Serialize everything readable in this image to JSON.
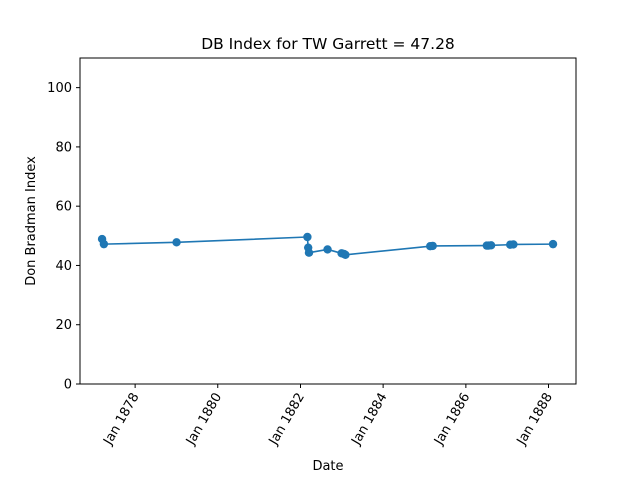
{
  "chart_data": {
    "type": "line",
    "title": "DB Index for TW Garrett = 47.28",
    "xlabel": "Date",
    "ylabel": "Don Bradman Index",
    "ylim": [
      0,
      110
    ],
    "xlim": [
      "1876-09-01",
      "1888-08-31"
    ],
    "yticks": [
      0,
      20,
      40,
      60,
      80,
      100
    ],
    "xticks": [
      {
        "date": "1878-01-01",
        "label": "Jan 1878"
      },
      {
        "date": "1880-01-01",
        "label": "Jan 1880"
      },
      {
        "date": "1882-01-01",
        "label": "Jan 1882"
      },
      {
        "date": "1884-01-01",
        "label": "Jan 1884"
      },
      {
        "date": "1886-01-01",
        "label": "Jan 1886"
      },
      {
        "date": "1888-01-01",
        "label": "Jan 1888"
      }
    ],
    "grid": false,
    "series": [
      {
        "color": "#1f77b4",
        "marker": "circle",
        "points": [
          {
            "x": "1877-03-15",
            "y": 48.9
          },
          {
            "x": "1877-03-31",
            "y": 47.2
          },
          {
            "x": "1879-01-02",
            "y": 47.8
          },
          {
            "x": "1882-03-03",
            "y": 49.6
          },
          {
            "x": "1882-03-10",
            "y": 46.0
          },
          {
            "x": "1882-03-17",
            "y": 44.3
          },
          {
            "x": "1882-08-28",
            "y": 45.4
          },
          {
            "x": "1882-12-30",
            "y": 44.1
          },
          {
            "x": "1883-01-19",
            "y": 43.9
          },
          {
            "x": "1883-02-02",
            "y": 43.6
          },
          {
            "x": "1885-02-20",
            "y": 46.5
          },
          {
            "x": "1885-03-14",
            "y": 46.6
          },
          {
            "x": "1886-07-05",
            "y": 46.7
          },
          {
            "x": "1886-07-19",
            "y": 46.7
          },
          {
            "x": "1886-08-12",
            "y": 46.8
          },
          {
            "x": "1887-01-28",
            "y": 47.0
          },
          {
            "x": "1887-02-25",
            "y": 47.1
          },
          {
            "x": "1888-02-10",
            "y": 47.2
          }
        ]
      }
    ]
  }
}
